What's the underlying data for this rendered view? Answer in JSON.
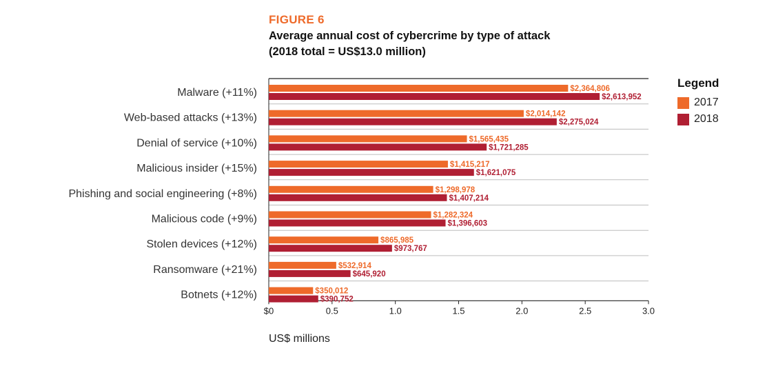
{
  "figure_label": "FIGURE 6",
  "title_line1": "Average annual cost of cybercrime by type of attack",
  "title_line2": "(2018 total = US$13.0 million)",
  "colors": {
    "2017": "#ee6a2a",
    "2018": "#b01f33"
  },
  "chart_data": {
    "type": "bar",
    "orientation": "horizontal",
    "categories": [
      "Malware (+11%)",
      "Web-based attacks (+13%)",
      "Denial of service (+10%)",
      "Malicious insider (+15%)",
      "Phishing and social engineering (+8%)",
      "Malicious code (+9%)",
      "Stolen devices (+12%)",
      "Ransomware (+21%)",
      "Botnets (+12%)"
    ],
    "series": [
      {
        "name": "2017",
        "values": [
          2.364806,
          2.014142,
          1.565435,
          1.415217,
          1.298978,
          1.282324,
          0.865985,
          0.532914,
          0.350012
        ],
        "labels": [
          "$2,364,806",
          "$2,014,142",
          "$1,565,435",
          "$1,415,217",
          "$1,298,978",
          "$1,282,324",
          "$865,985",
          "$532,914",
          "$350,012"
        ]
      },
      {
        "name": "2018",
        "values": [
          2.613952,
          2.275024,
          1.721285,
          1.621075,
          1.407214,
          1.396603,
          0.973767,
          0.64592,
          0.390752
        ],
        "labels": [
          "$2,613,952",
          "$2,275,024",
          "$1,721,285",
          "$1,621,075",
          "$1,407,214",
          "$1,396,603",
          "$973,767",
          "$645,920",
          "$390,752"
        ]
      }
    ],
    "xlabel": "US$ millions",
    "xlim": [
      0,
      3.0
    ],
    "xticks": [
      0,
      0.5,
      1.0,
      1.5,
      2.0,
      2.5,
      3.0
    ],
    "xtick_labels": [
      "$0",
      "0.5",
      "1.0",
      "1.5",
      "2.0",
      "2.5",
      "3.0"
    ],
    "legend": {
      "title": "Legend",
      "position": "top-right"
    },
    "grid": false
  }
}
